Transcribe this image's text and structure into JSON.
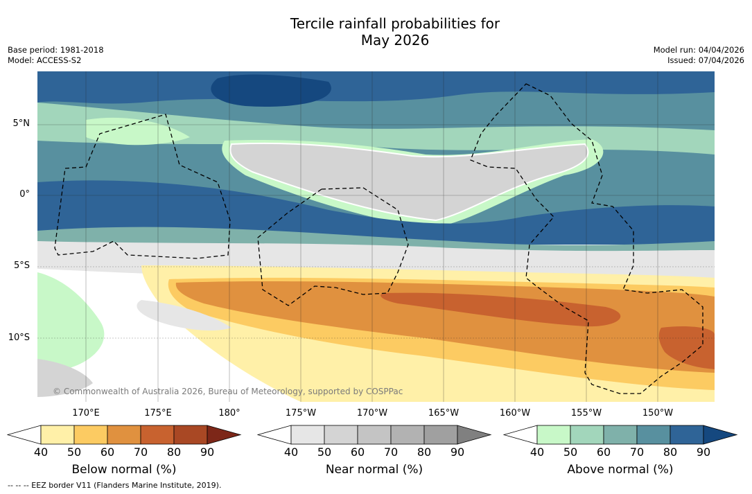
{
  "title_line1": "Tercile rainfall probabilities for",
  "title_line2": "May 2026",
  "base_period": "Base period: 1981-2018",
  "model": "Model: ACCESS-S2",
  "model_run": "Model run: 04/04/2026",
  "issued": "Issued: 07/04/2026",
  "lat_labels": [
    "5°N",
    "0°",
    "5°S",
    "10°S"
  ],
  "lon_labels": [
    "170°E",
    "175°E",
    "180°",
    "175°W",
    "170°W",
    "165°W",
    "160°W",
    "155°W",
    "150°W"
  ],
  "copyright": "© Commonwealth of Australia 2026, Bureau of Meteorology, supported by COSPPac",
  "colorbars": [
    {
      "label": "Below normal (%)",
      "ticks": [
        "40",
        "50",
        "60",
        "70",
        "80",
        "90"
      ],
      "colors": [
        "#ffffff",
        "#fff0a8",
        "#fccb62",
        "#e0913f",
        "#c8622f",
        "#a94824",
        "#7d2718"
      ]
    },
    {
      "label": "Near normal (%)",
      "ticks": [
        "40",
        "50",
        "60",
        "70",
        "80",
        "90"
      ],
      "colors": [
        "#ffffff",
        "#e6e6e6",
        "#d4d4d4",
        "#c4c4c4",
        "#b2b2b2",
        "#a0a0a0",
        "#808080"
      ]
    },
    {
      "label": "Above normal (%)",
      "ticks": [
        "40",
        "50",
        "60",
        "70",
        "80",
        "90"
      ],
      "colors": [
        "#ffffff",
        "#c8f8c8",
        "#a2d6bb",
        "#7fb1aa",
        "#58909f",
        "#2f6497",
        "#15487f"
      ]
    }
  ],
  "footnote": "-- -- -- EEZ border V11 (Flanders Marine Institute, 2019)."
}
